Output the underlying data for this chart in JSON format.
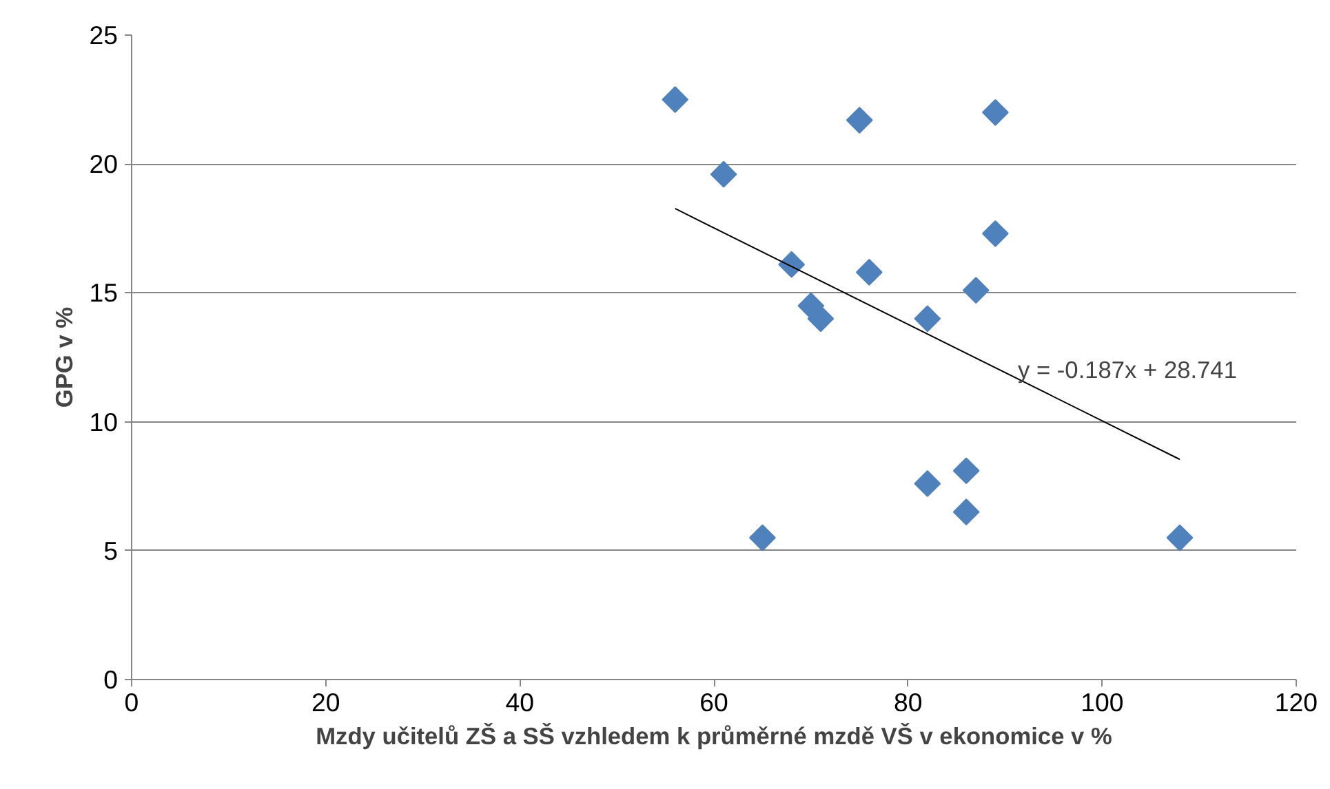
{
  "chart_data": {
    "type": "scatter",
    "xlabel": "Mzdy učitelů ZŠ a SŠ vzhledem k průměrné mzdě VŠ v ekonomice v %",
    "ylabel": "GPG v %",
    "x": [
      56,
      61,
      75,
      89,
      89,
      68,
      76,
      87,
      70,
      71,
      82,
      86,
      82,
      86,
      65,
      108
    ],
    "series": [
      {
        "color": "#4f81bd",
        "marker": "diamond",
        "values": [
          22.5,
          19.6,
          21.7,
          22.0,
          17.3,
          16.1,
          15.8,
          15.1,
          14.5,
          14.0,
          14.0,
          8.1,
          7.6,
          6.5,
          5.5,
          5.5
        ]
      },
      {
        "type": "line",
        "color": "#000000",
        "x": [
          56,
          108
        ],
        "values": [
          18.27,
          8.54
        ]
      }
    ],
    "annotations": [
      "y = -0.187x + 28.741"
    ],
    "xlim": [
      0,
      120
    ],
    "xticks": [
      0,
      20,
      40,
      60,
      80,
      100,
      120
    ],
    "ylim": [
      0,
      25
    ],
    "yticks": [
      0,
      5,
      10,
      15,
      20,
      25
    ],
    "grid": "y"
  }
}
